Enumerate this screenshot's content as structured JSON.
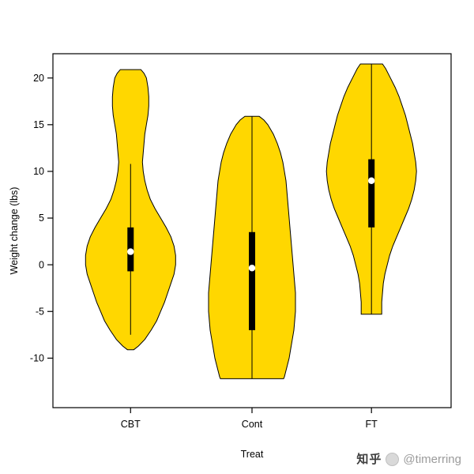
{
  "watermark": {
    "brand": "知乎",
    "handle": "@timerring"
  },
  "chart_data": {
    "type": "violin",
    "title": "",
    "xlabel": "Treat",
    "ylabel": "Weight change (lbs)",
    "categories": [
      "CBT",
      "Cont",
      "FT"
    ],
    "ylim": [
      -15.3,
      22.6
    ],
    "yticks": [
      -10,
      -5,
      0,
      5,
      10,
      15,
      20
    ],
    "grid": false,
    "legend": "none",
    "style": {
      "fill": "#FFD700",
      "stroke": "#000000",
      "box_color": "#000000",
      "median_color": "#ffffff",
      "background": "#ffffff"
    },
    "violins": [
      {
        "category": "CBT",
        "min": -9.1,
        "max": 20.9,
        "box": {
          "q1": -0.7,
          "q3": 4.0,
          "median": 1.4
        },
        "whiskers": {
          "low": -7.5,
          "high": 10.8
        },
        "profile": [
          [
            20.9,
            13
          ],
          [
            20.5,
            17
          ],
          [
            20,
            20
          ],
          [
            19,
            22
          ],
          [
            18,
            23
          ],
          [
            17,
            23
          ],
          [
            16,
            22
          ],
          [
            15,
            20
          ],
          [
            14,
            18
          ],
          [
            13,
            17
          ],
          [
            12,
            16
          ],
          [
            11,
            15
          ],
          [
            10,
            16
          ],
          [
            9,
            18
          ],
          [
            8,
            21
          ],
          [
            7,
            25
          ],
          [
            6,
            31
          ],
          [
            5,
            38
          ],
          [
            4,
            45
          ],
          [
            3,
            51
          ],
          [
            2,
            55
          ],
          [
            1,
            57
          ],
          [
            0,
            57
          ],
          [
            -1,
            55
          ],
          [
            -2,
            51
          ],
          [
            -3,
            47
          ],
          [
            -4,
            43
          ],
          [
            -5,
            38
          ],
          [
            -6,
            33
          ],
          [
            -7,
            26
          ],
          [
            -8,
            18
          ],
          [
            -8.7,
            10
          ],
          [
            -9.1,
            4
          ]
        ]
      },
      {
        "category": "Cont",
        "min": -12.2,
        "max": 15.9,
        "box": {
          "q1": -7.0,
          "q3": 3.5,
          "median": -0.35
        },
        "whiskers": {
          "low": -12.2,
          "high": 15.9
        },
        "profile": [
          [
            15.9,
            9
          ],
          [
            15.5,
            15
          ],
          [
            15,
            20
          ],
          [
            14,
            27
          ],
          [
            13,
            32
          ],
          [
            12,
            36
          ],
          [
            11,
            39
          ],
          [
            10,
            41
          ],
          [
            9,
            43
          ],
          [
            8,
            44
          ],
          [
            7,
            45
          ],
          [
            6,
            46
          ],
          [
            5,
            47
          ],
          [
            4,
            48
          ],
          [
            3,
            49
          ],
          [
            2,
            50
          ],
          [
            1,
            51
          ],
          [
            0,
            52
          ],
          [
            -1,
            53
          ],
          [
            -2,
            54
          ],
          [
            -3,
            55
          ],
          [
            -4,
            55
          ],
          [
            -5,
            55
          ],
          [
            -6,
            54
          ],
          [
            -7,
            53
          ],
          [
            -8,
            51
          ],
          [
            -9,
            49
          ],
          [
            -10,
            47
          ],
          [
            -11,
            44
          ],
          [
            -12,
            41
          ],
          [
            -12.2,
            40
          ]
        ]
      },
      {
        "category": "FT",
        "min": -5.3,
        "max": 21.5,
        "box": {
          "q1": 4.0,
          "q3": 11.3,
          "median": 9.0
        },
        "whiskers": {
          "low": -5.3,
          "high": 21.5
        },
        "profile": [
          [
            21.5,
            14
          ],
          [
            21,
            18
          ],
          [
            20,
            24
          ],
          [
            19,
            30
          ],
          [
            18,
            35
          ],
          [
            17,
            39
          ],
          [
            16,
            43
          ],
          [
            15,
            46
          ],
          [
            14,
            49
          ],
          [
            13,
            52
          ],
          [
            12,
            54
          ],
          [
            11,
            56
          ],
          [
            10,
            57
          ],
          [
            9,
            56
          ],
          [
            8,
            54
          ],
          [
            7,
            51
          ],
          [
            6,
            47
          ],
          [
            5,
            42
          ],
          [
            4,
            37
          ],
          [
            3,
            32
          ],
          [
            2,
            27
          ],
          [
            1,
            23
          ],
          [
            0,
            20
          ],
          [
            -1,
            17
          ],
          [
            -2,
            15
          ],
          [
            -3,
            14
          ],
          [
            -4,
            13
          ],
          [
            -5,
            13
          ],
          [
            -5.3,
            13
          ]
        ]
      }
    ]
  }
}
